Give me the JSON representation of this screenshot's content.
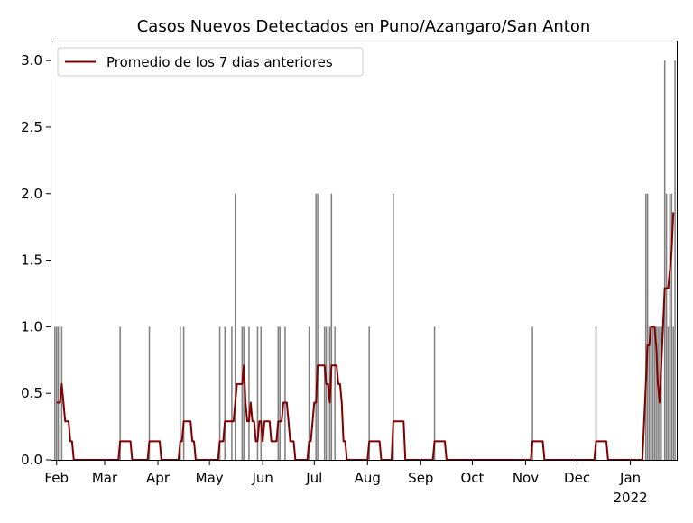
{
  "chart_data": {
    "type": "bar",
    "title": "Casos Nuevos Detectados en Puno/Azangaro/San Anton",
    "xlabel": "",
    "ylabel": "",
    "ylim": [
      0,
      3.15
    ],
    "xlim": [
      "2021-01-29",
      "2022-01-28"
    ],
    "grid": false,
    "legend_position": "top-left",
    "y_ticks": [
      "0.0",
      "0.5",
      "1.0",
      "1.5",
      "2.0",
      "2.5",
      "3.0"
    ],
    "x_ticks": [
      {
        "date": "2021-02-01",
        "label": "Feb"
      },
      {
        "date": "2021-03-01",
        "label": "Mar"
      },
      {
        "date": "2021-04-01",
        "label": "Apr"
      },
      {
        "date": "2021-05-01",
        "label": "May"
      },
      {
        "date": "2021-06-01",
        "label": "Jun"
      },
      {
        "date": "2021-07-01",
        "label": "Jul"
      },
      {
        "date": "2021-08-01",
        "label": "Aug"
      },
      {
        "date": "2021-09-01",
        "label": "Sep"
      },
      {
        "date": "2021-10-01",
        "label": "Oct"
      },
      {
        "date": "2021-11-01",
        "label": "Nov"
      },
      {
        "date": "2021-12-01",
        "label": "Dec"
      },
      {
        "date": "2022-01-01",
        "label": "Jan",
        "sublabel": "2022"
      }
    ],
    "series": [
      {
        "kind": "bar",
        "color": "#808080",
        "points": [
          {
            "x": "2021-01-31",
            "y": 1
          },
          {
            "x": "2021-02-01",
            "y": 1
          },
          {
            "x": "2021-02-02",
            "y": 1
          },
          {
            "x": "2021-02-04",
            "y": 1
          },
          {
            "x": "2021-03-10",
            "y": 1
          },
          {
            "x": "2021-03-27",
            "y": 1
          },
          {
            "x": "2021-04-14",
            "y": 1
          },
          {
            "x": "2021-04-16",
            "y": 1
          },
          {
            "x": "2021-05-07",
            "y": 1
          },
          {
            "x": "2021-05-10",
            "y": 1
          },
          {
            "x": "2021-05-14",
            "y": 1
          },
          {
            "x": "2021-05-16",
            "y": 2
          },
          {
            "x": "2021-05-20",
            "y": 1
          },
          {
            "x": "2021-05-21",
            "y": 1
          },
          {
            "x": "2021-05-24",
            "y": 1
          },
          {
            "x": "2021-05-29",
            "y": 1
          },
          {
            "x": "2021-05-31",
            "y": 1
          },
          {
            "x": "2021-06-10",
            "y": 1
          },
          {
            "x": "2021-06-11",
            "y": 1
          },
          {
            "x": "2021-06-14",
            "y": 1
          },
          {
            "x": "2021-06-28",
            "y": 1
          },
          {
            "x": "2021-07-02",
            "y": 2
          },
          {
            "x": "2021-07-03",
            "y": 2
          },
          {
            "x": "2021-07-07",
            "y": 1
          },
          {
            "x": "2021-07-08",
            "y": 1
          },
          {
            "x": "2021-07-10",
            "y": 1
          },
          {
            "x": "2021-07-11",
            "y": 2
          },
          {
            "x": "2021-07-13",
            "y": 1
          },
          {
            "x": "2021-08-02",
            "y": 1
          },
          {
            "x": "2021-08-16",
            "y": 2
          },
          {
            "x": "2021-09-09",
            "y": 1
          },
          {
            "x": "2021-11-05",
            "y": 1
          },
          {
            "x": "2021-12-12",
            "y": 1
          },
          {
            "x": "2022-01-10",
            "y": 2
          },
          {
            "x": "2022-01-11",
            "y": 2
          },
          {
            "x": "2022-01-12",
            "y": 1
          },
          {
            "x": "2022-01-13",
            "y": 1
          },
          {
            "x": "2022-01-14",
            "y": 1
          },
          {
            "x": "2022-01-15",
            "y": 1
          },
          {
            "x": "2022-01-16",
            "y": 1
          },
          {
            "x": "2022-01-17",
            "y": 1
          },
          {
            "x": "2022-01-18",
            "y": 1
          },
          {
            "x": "2022-01-19",
            "y": 1
          },
          {
            "x": "2022-01-21",
            "y": 3
          },
          {
            "x": "2022-01-22",
            "y": 2
          },
          {
            "x": "2022-01-23",
            "y": 1
          },
          {
            "x": "2022-01-24",
            "y": 2
          },
          {
            "x": "2022-01-25",
            "y": 2
          },
          {
            "x": "2022-01-26",
            "y": 1
          },
          {
            "x": "2022-01-27",
            "y": 3
          }
        ]
      },
      {
        "kind": "line",
        "name": "Promedio de los 7 dias anteriores",
        "color": "#800000",
        "points": [
          {
            "x": "2021-02-01",
            "y": 0.43
          },
          {
            "x": "2021-02-03",
            "y": 0.43
          },
          {
            "x": "2021-02-04",
            "y": 0.57
          },
          {
            "x": "2021-02-05",
            "y": 0.43
          },
          {
            "x": "2021-02-06",
            "y": 0.29
          },
          {
            "x": "2021-02-08",
            "y": 0.29
          },
          {
            "x": "2021-02-09",
            "y": 0.14
          },
          {
            "x": "2021-02-10",
            "y": 0.14
          },
          {
            "x": "2021-02-11",
            "y": 0
          },
          {
            "x": "2021-03-09",
            "y": 0
          },
          {
            "x": "2021-03-10",
            "y": 0.14
          },
          {
            "x": "2021-03-16",
            "y": 0.14
          },
          {
            "x": "2021-03-17",
            "y": 0
          },
          {
            "x": "2021-03-26",
            "y": 0
          },
          {
            "x": "2021-03-27",
            "y": 0.14
          },
          {
            "x": "2021-04-02",
            "y": 0.14
          },
          {
            "x": "2021-04-03",
            "y": 0
          },
          {
            "x": "2021-04-13",
            "y": 0
          },
          {
            "x": "2021-04-14",
            "y": 0.14
          },
          {
            "x": "2021-04-15",
            "y": 0.14
          },
          {
            "x": "2021-04-16",
            "y": 0.29
          },
          {
            "x": "2021-04-20",
            "y": 0.29
          },
          {
            "x": "2021-04-21",
            "y": 0.14
          },
          {
            "x": "2021-04-22",
            "y": 0.14
          },
          {
            "x": "2021-04-23",
            "y": 0
          },
          {
            "x": "2021-05-06",
            "y": 0
          },
          {
            "x": "2021-05-07",
            "y": 0.14
          },
          {
            "x": "2021-05-09",
            "y": 0.14
          },
          {
            "x": "2021-05-10",
            "y": 0.29
          },
          {
            "x": "2021-05-15",
            "y": 0.29
          },
          {
            "x": "2021-05-16",
            "y": 0.43
          },
          {
            "x": "2021-05-17",
            "y": 0.57
          },
          {
            "x": "2021-05-20",
            "y": 0.57
          },
          {
            "x": "2021-05-21",
            "y": 0.71
          },
          {
            "x": "2021-05-22",
            "y": 0.43
          },
          {
            "x": "2021-05-23",
            "y": 0.29
          },
          {
            "x": "2021-05-24",
            "y": 0.29
          },
          {
            "x": "2021-05-25",
            "y": 0.43
          },
          {
            "x": "2021-05-26",
            "y": 0.29
          },
          {
            "x": "2021-05-27",
            "y": 0.29
          },
          {
            "x": "2021-05-28",
            "y": 0.14
          },
          {
            "x": "2021-05-29",
            "y": 0.14
          },
          {
            "x": "2021-05-30",
            "y": 0.29
          },
          {
            "x": "2021-05-31",
            "y": 0.29
          },
          {
            "x": "2021-06-01",
            "y": 0.14
          },
          {
            "x": "2021-06-02",
            "y": 0.29
          },
          {
            "x": "2021-06-05",
            "y": 0.29
          },
          {
            "x": "2021-06-06",
            "y": 0.14
          },
          {
            "x": "2021-06-09",
            "y": 0.14
          },
          {
            "x": "2021-06-10",
            "y": 0.29
          },
          {
            "x": "2021-06-12",
            "y": 0.29
          },
          {
            "x": "2021-06-13",
            "y": 0.43
          },
          {
            "x": "2021-06-15",
            "y": 0.43
          },
          {
            "x": "2021-06-16",
            "y": 0.29
          },
          {
            "x": "2021-06-17",
            "y": 0.14
          },
          {
            "x": "2021-06-19",
            "y": 0.14
          },
          {
            "x": "2021-06-20",
            "y": 0
          },
          {
            "x": "2021-06-27",
            "y": 0
          },
          {
            "x": "2021-06-28",
            "y": 0.14
          },
          {
            "x": "2021-06-29",
            "y": 0.14
          },
          {
            "x": "2021-07-01",
            "y": 0.43
          },
          {
            "x": "2021-07-02",
            "y": 0.43
          },
          {
            "x": "2021-07-03",
            "y": 0.71
          },
          {
            "x": "2021-07-07",
            "y": 0.71
          },
          {
            "x": "2021-07-08",
            "y": 0.57
          },
          {
            "x": "2021-07-09",
            "y": 0.57
          },
          {
            "x": "2021-07-10",
            "y": 0.43
          },
          {
            "x": "2021-07-11",
            "y": 0.71
          },
          {
            "x": "2021-07-14",
            "y": 0.71
          },
          {
            "x": "2021-07-15",
            "y": 0.57
          },
          {
            "x": "2021-07-16",
            "y": 0.57
          },
          {
            "x": "2021-07-17",
            "y": 0.43
          },
          {
            "x": "2021-07-18",
            "y": 0.14
          },
          {
            "x": "2021-07-19",
            "y": 0.14
          },
          {
            "x": "2021-07-20",
            "y": 0
          },
          {
            "x": "2021-08-01",
            "y": 0
          },
          {
            "x": "2021-08-02",
            "y": 0.14
          },
          {
            "x": "2021-08-08",
            "y": 0.14
          },
          {
            "x": "2021-08-09",
            "y": 0
          },
          {
            "x": "2021-08-15",
            "y": 0
          },
          {
            "x": "2021-08-16",
            "y": 0.29
          },
          {
            "x": "2021-08-22",
            "y": 0.29
          },
          {
            "x": "2021-08-23",
            "y": 0
          },
          {
            "x": "2021-09-08",
            "y": 0
          },
          {
            "x": "2021-09-09",
            "y": 0.14
          },
          {
            "x": "2021-09-15",
            "y": 0.14
          },
          {
            "x": "2021-09-16",
            "y": 0
          },
          {
            "x": "2021-11-04",
            "y": 0
          },
          {
            "x": "2021-11-05",
            "y": 0.14
          },
          {
            "x": "2021-11-11",
            "y": 0.14
          },
          {
            "x": "2021-11-12",
            "y": 0
          },
          {
            "x": "2021-12-11",
            "y": 0
          },
          {
            "x": "2021-12-12",
            "y": 0.14
          },
          {
            "x": "2021-12-18",
            "y": 0.14
          },
          {
            "x": "2021-12-19",
            "y": 0
          },
          {
            "x": "2022-01-08",
            "y": 0
          },
          {
            "x": "2022-01-09",
            "y": 0.29
          },
          {
            "x": "2022-01-10",
            "y": 0.57
          },
          {
            "x": "2022-01-11",
            "y": 0.86
          },
          {
            "x": "2022-01-12",
            "y": 0.86
          },
          {
            "x": "2022-01-13",
            "y": 1
          },
          {
            "x": "2022-01-15",
            "y": 1
          },
          {
            "x": "2022-01-16",
            "y": 0.86
          },
          {
            "x": "2022-01-17",
            "y": 0.57
          },
          {
            "x": "2022-01-18",
            "y": 0.43
          },
          {
            "x": "2022-01-19",
            "y": 0.71
          },
          {
            "x": "2022-01-20",
            "y": 1
          },
          {
            "x": "2022-01-21",
            "y": 1.29
          },
          {
            "x": "2022-01-22",
            "y": 1.29
          },
          {
            "x": "2022-01-23",
            "y": 1.29
          },
          {
            "x": "2022-01-24",
            "y": 1.43
          },
          {
            "x": "2022-01-25",
            "y": 1.57
          },
          {
            "x": "2022-01-26",
            "y": 1.86
          }
        ]
      }
    ]
  }
}
